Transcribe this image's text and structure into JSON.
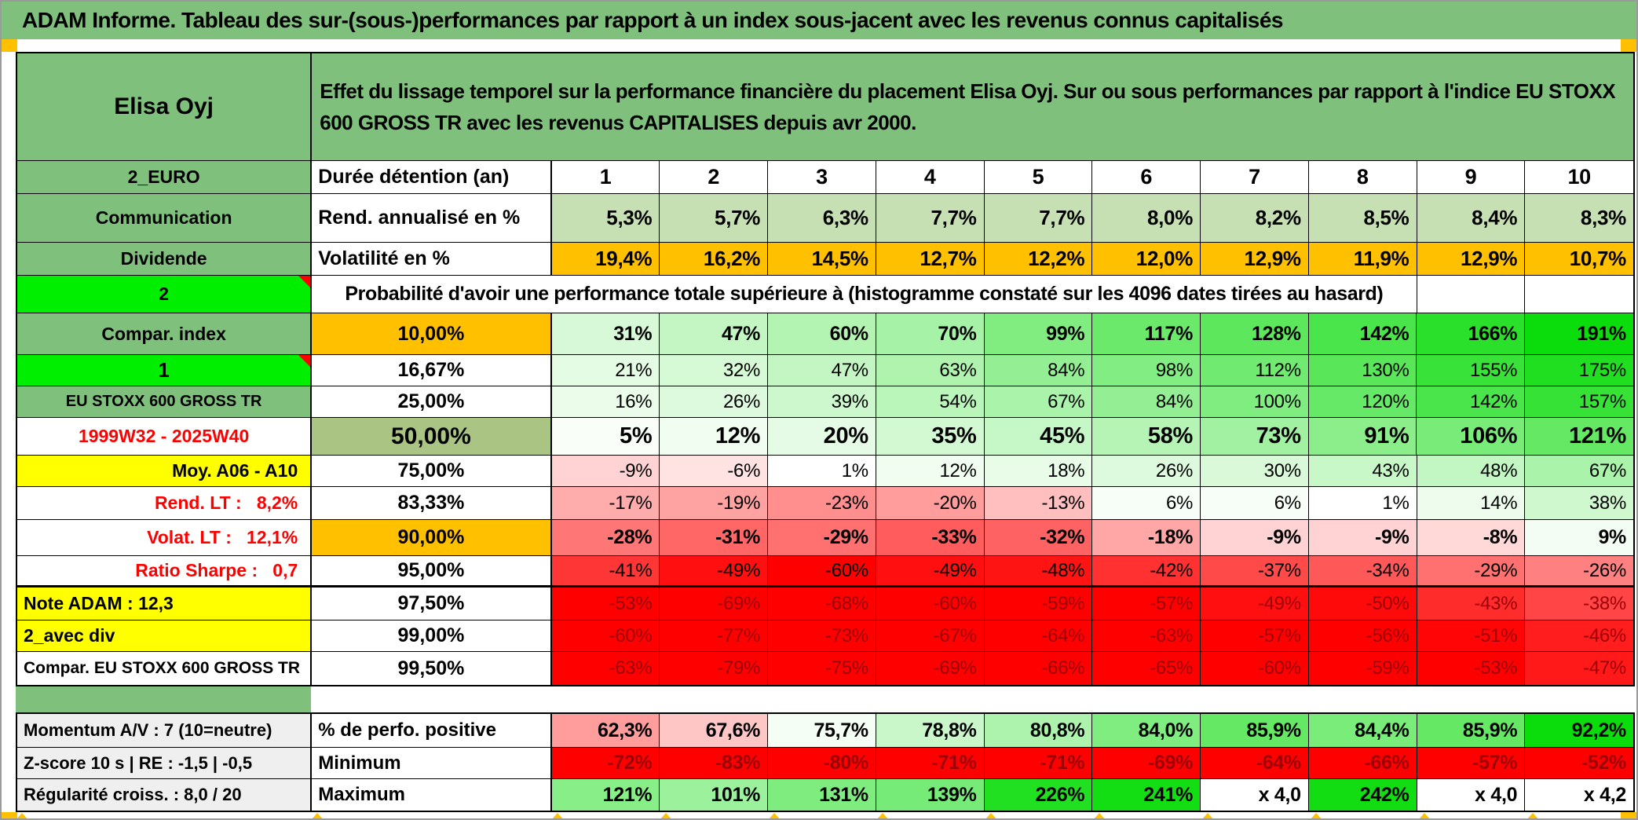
{
  "title_bar": "ADAM Informe. Tableau des sur-(sous-)performances par rapport à un index sous-jacent avec les revenus connus capitalisés",
  "colors": {
    "title_green": "#7fc17c",
    "header_green": "#7fc17c",
    "bright_green": "#00ee00",
    "orange": "#ffc000",
    "sage": "#a9c483",
    "yellow": "#ffff00",
    "gray_label": "#efefef",
    "light_green_fill": "#c6e0b4",
    "red_text": "#ff0000",
    "dark_red_text": "#9c0006",
    "full_red": "#ff0000",
    "marker_orange": "#ffc000",
    "corner_flag_red": "#ff0000"
  },
  "header": {
    "stock_name": "Elisa Oyj",
    "description": "Effet du lissage temporel sur la performance financière du placement Elisa Oyj. Sur ou sous performances par rapport à l'indice EU STOXX 600 GROSS TR avec les revenus CAPITALISES depuis avr 2000."
  },
  "columns": {
    "durations": [
      "1",
      "2",
      "3",
      "4",
      "5",
      "6",
      "7",
      "8",
      "9",
      "10"
    ]
  },
  "main_rows": [
    {
      "id": "durations",
      "left": "2_EURO",
      "left_style": "green",
      "col2": "Durée détention (an)",
      "type": "cols"
    },
    {
      "id": "rend",
      "left": "Communication",
      "left_style": "green",
      "col2": "Rend. annualisé en %",
      "type": "fixed",
      "cell_bg": "lightgreen",
      "bold": true,
      "values": [
        "5,3%",
        "5,7%",
        "6,3%",
        "7,7%",
        "7,7%",
        "8,0%",
        "8,2%",
        "8,5%",
        "8,4%",
        "8,3%"
      ]
    },
    {
      "id": "volat",
      "left": "Dividende",
      "left_style": "green",
      "col2": "Volatilité en %",
      "type": "fixed",
      "cell_bg": "orange",
      "values": [
        "19,4%",
        "16,2%",
        "14,5%",
        "12,7%",
        "12,2%",
        "12,0%",
        "12,9%",
        "11,9%",
        "12,9%",
        "10,7%"
      ]
    },
    {
      "id": "proba",
      "left": "2",
      "left_style": "bright",
      "corner": true,
      "type": "proba",
      "text": "Probabilité d'avoir une performance totale supérieure à (histogramme constaté sur les 4096 dates tirées au hasard)"
    },
    {
      "id": "p10",
      "left": "Compar. index",
      "left_style": "green",
      "col2": "10,00%",
      "col2_style": "orange",
      "type": "scale",
      "emphasis": "bold",
      "values": [
        "31%",
        "47%",
        "60%",
        "70%",
        "99%",
        "117%",
        "128%",
        "142%",
        "166%",
        "191%"
      ],
      "nums": [
        31,
        47,
        60,
        70,
        99,
        117,
        128,
        142,
        166,
        191
      ]
    },
    {
      "id": "p16",
      "left": "1",
      "left_style": "bright",
      "corner": true,
      "left_size": 26,
      "col2": "16,67%",
      "type": "scale",
      "values": [
        "21%",
        "32%",
        "47%",
        "63%",
        "84%",
        "98%",
        "112%",
        "130%",
        "155%",
        "175%"
      ],
      "nums": [
        21,
        32,
        47,
        63,
        84,
        98,
        112,
        130,
        155,
        175
      ]
    },
    {
      "id": "p25",
      "left": "EU STOXX 600 GROSS TR",
      "left_style": "green",
      "left_size": 20,
      "col2": "25,00%",
      "type": "scale",
      "values": [
        "16%",
        "26%",
        "39%",
        "54%",
        "67%",
        "84%",
        "100%",
        "120%",
        "142%",
        "157%"
      ],
      "nums": [
        16,
        26,
        39,
        54,
        67,
        84,
        100,
        120,
        142,
        157
      ]
    },
    {
      "id": "p50",
      "left": "1999W32 - 2025W40",
      "left_style": "white-red",
      "col2": "50,00%",
      "col2_style": "sage",
      "col2_size": 30,
      "type": "scale",
      "emphasis": "big",
      "values": [
        "5%",
        "12%",
        "20%",
        "35%",
        "45%",
        "58%",
        "73%",
        "91%",
        "106%",
        "121%"
      ],
      "nums": [
        5,
        12,
        20,
        35,
        45,
        58,
        73,
        91,
        106,
        121
      ]
    },
    {
      "id": "p75",
      "left": "Moy. A06 - A10",
      "left_style": "yellow-right",
      "col2": "75,00%",
      "type": "scale",
      "values": [
        "-9%",
        "-6%",
        "1%",
        "12%",
        "18%",
        "26%",
        "30%",
        "43%",
        "48%",
        "67%"
      ],
      "nums": [
        -9,
        -6,
        1,
        12,
        18,
        26,
        30,
        43,
        48,
        67
      ]
    },
    {
      "id": "p83",
      "left": "Rend. LT :   8,2%",
      "left_style": "white-red-right",
      "col2": "83,33%",
      "type": "scale",
      "values": [
        "-17%",
        "-19%",
        "-23%",
        "-20%",
        "-13%",
        "6%",
        "6%",
        "1%",
        "14%",
        "38%"
      ],
      "nums": [
        -17,
        -19,
        -23,
        -20,
        -13,
        6,
        6,
        1,
        14,
        38
      ]
    },
    {
      "id": "p90",
      "left": "Volat. LT :   12,1%",
      "left_style": "white-red-right",
      "col2": "90,00%",
      "col2_style": "orange",
      "type": "scale",
      "emphasis": "bold",
      "values": [
        "-28%",
        "-31%",
        "-29%",
        "-33%",
        "-32%",
        "-18%",
        "-9%",
        "-9%",
        "-8%",
        "9%"
      ],
      "nums": [
        -28,
        -31,
        -29,
        -33,
        -32,
        -18,
        -9,
        -9,
        -8,
        9
      ]
    },
    {
      "id": "p95",
      "left": "Ratio Sharpe :   0,7",
      "left_style": "white-red-right",
      "col2": "95,00%",
      "type": "scale",
      "thick_bottom": true,
      "values": [
        "-41%",
        "-49%",
        "-60%",
        "-49%",
        "-48%",
        "-42%",
        "-37%",
        "-34%",
        "-29%",
        "-26%"
      ],
      "nums": [
        -41,
        -49,
        -60,
        -49,
        -48,
        -42,
        -37,
        -34,
        -29,
        -26
      ]
    },
    {
      "id": "p975",
      "left": "Note ADAM : 12,3",
      "left_style": "yellow-left",
      "col2": "97,50%",
      "type": "scale",
      "text_color": "darkred",
      "values": [
        "-53%",
        "-69%",
        "-68%",
        "-60%",
        "-59%",
        "-57%",
        "-49%",
        "-50%",
        "-43%",
        "-38%"
      ],
      "nums": [
        -53,
        -69,
        -68,
        -60,
        -59,
        -57,
        -49,
        -50,
        -43,
        -38
      ]
    },
    {
      "id": "p99",
      "left": "2_avec div",
      "left_style": "yellow-left",
      "col2": "99,00%",
      "type": "scale",
      "text_color": "darkred",
      "values": [
        "-60%",
        "-77%",
        "-73%",
        "-67%",
        "-64%",
        "-63%",
        "-57%",
        "-56%",
        "-51%",
        "-46%"
      ],
      "nums": [
        -60,
        -77,
        -73,
        -67,
        -64,
        -63,
        -57,
        -56,
        -51,
        -46
      ]
    },
    {
      "id": "p995",
      "left": "Compar. EU STOXX 600 GROSS TR",
      "left_style": "white-left",
      "left_size": 21,
      "col2": "99,50%",
      "type": "scale",
      "text_color": "darkred",
      "values": [
        "-63%",
        "-79%",
        "-75%",
        "-69%",
        "-66%",
        "-65%",
        "-60%",
        "-59%",
        "-53%",
        "-47%"
      ],
      "nums": [
        -63,
        -79,
        -75,
        -69,
        -66,
        -65,
        -60,
        -59,
        -53,
        -47
      ]
    }
  ],
  "footer_rows": [
    {
      "id": "perfo",
      "left": "Momentum A/V : 7 (10=neutre)",
      "label": "% de perfo. positive",
      "scale": "perfo",
      "bold": true,
      "values": [
        "62,3%",
        "67,6%",
        "75,7%",
        "78,8%",
        "80,8%",
        "84,0%",
        "85,9%",
        "84,4%",
        "85,9%",
        "92,2%"
      ],
      "nums": [
        62.3,
        67.6,
        75.7,
        78.8,
        80.8,
        84.0,
        85.9,
        84.4,
        85.9,
        92.2
      ]
    },
    {
      "id": "min",
      "left": "Z-score 10 s | RE : -1,5 | -0,5",
      "label": "Minimum",
      "scale": "minrow",
      "bold": true,
      "text_color": "darkred",
      "values": [
        "-72%",
        "-83%",
        "-80%",
        "-71%",
        "-71%",
        "-69%",
        "-64%",
        "-66%",
        "-57%",
        "-52%"
      ],
      "nums": [
        -72,
        -83,
        -80,
        -71,
        -71,
        -69,
        -64,
        -66,
        -57,
        -52
      ]
    },
    {
      "id": "max",
      "left": "Régularité croiss. : 8,0 / 20",
      "label": "Maximum",
      "scale": "maxrow",
      "bold": true,
      "values": [
        "121%",
        "101%",
        "131%",
        "139%",
        "226%",
        "241%",
        "x 4,0",
        "242%",
        "x 4,0",
        "x 4,2"
      ],
      "nums": [
        121,
        101,
        131,
        139,
        226,
        241,
        null,
        242,
        null,
        null
      ]
    }
  ]
}
